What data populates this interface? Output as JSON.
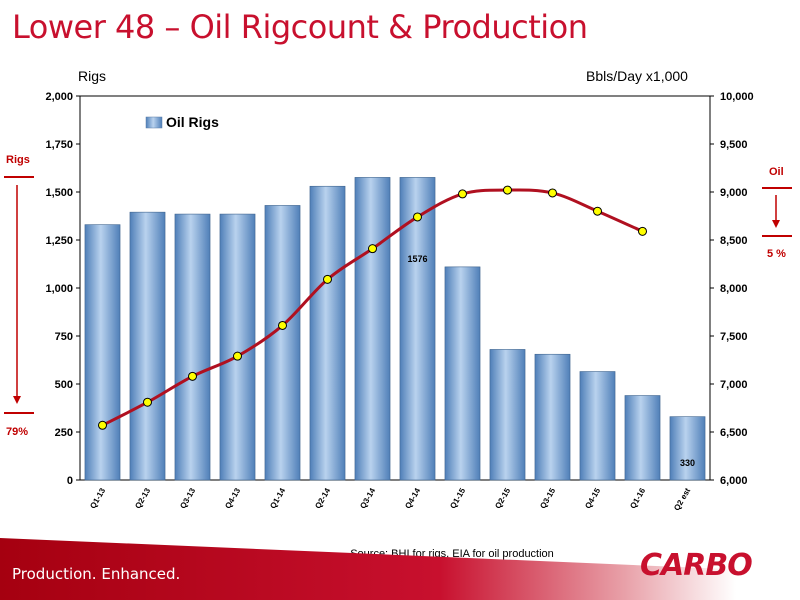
{
  "slide": {
    "title": "Lower 48 – Oil Rigcount & Production",
    "left_unit": "Rigs",
    "right_unit": "Bbls/Day x1,000",
    "source": "Source: BHI for rigs, EIA for oil production",
    "tagline": "Production. Enhanced.",
    "logo": "CARBO"
  },
  "annotations": {
    "rigs_label": "Rigs",
    "rigs_change": "79%",
    "oil_label": "Oil",
    "oil_change": "5 %",
    "arrow_color": "#c00000"
  },
  "colors": {
    "brand_red": "#c8102e",
    "bar_fill": "#7ea6d4",
    "line_color": "#b01020",
    "marker_fill": "#ffff00"
  },
  "chart_data": {
    "type": "bar",
    "categories": [
      "Q1-13",
      "Q2-13",
      "Q3-13",
      "Q4-13",
      "Q1-14",
      "Q2-14",
      "Q3-14",
      "Q4-14",
      "Q1-15",
      "Q2-15",
      "Q3-15",
      "Q4-15",
      "Q1-16",
      "Q2 est"
    ],
    "series": [
      {
        "name": "Oil Rigs",
        "type": "bar",
        "axis": "left",
        "values": [
          1330,
          1395,
          1385,
          1385,
          1430,
          1530,
          1576,
          1576,
          1110,
          680,
          655,
          565,
          440,
          330
        ]
      },
      {
        "type": "line",
        "axis": "right",
        "values": [
          6570,
          6810,
          7080,
          7290,
          7610,
          8090,
          8410,
          8740,
          8980,
          9020,
          8990,
          8800,
          8590,
          null
        ]
      }
    ],
    "data_labels": [
      {
        "category": "Q4-14",
        "text": "1576"
      },
      {
        "category": "Q2 est",
        "text": "330"
      }
    ],
    "left_ylim": [
      0,
      2000
    ],
    "right_ylim": [
      6000,
      10000
    ],
    "left_ticks": [
      "0",
      "250",
      "500",
      "750",
      "1,000",
      "1,250",
      "1,500",
      "1,750",
      "2,000"
    ],
    "right_ticks": [
      "6,000",
      "6,500",
      "7,000",
      "7,500",
      "8,000",
      "8,500",
      "9,000",
      "9,500",
      "10,000"
    ],
    "legend": "top-left",
    "grid": false
  }
}
